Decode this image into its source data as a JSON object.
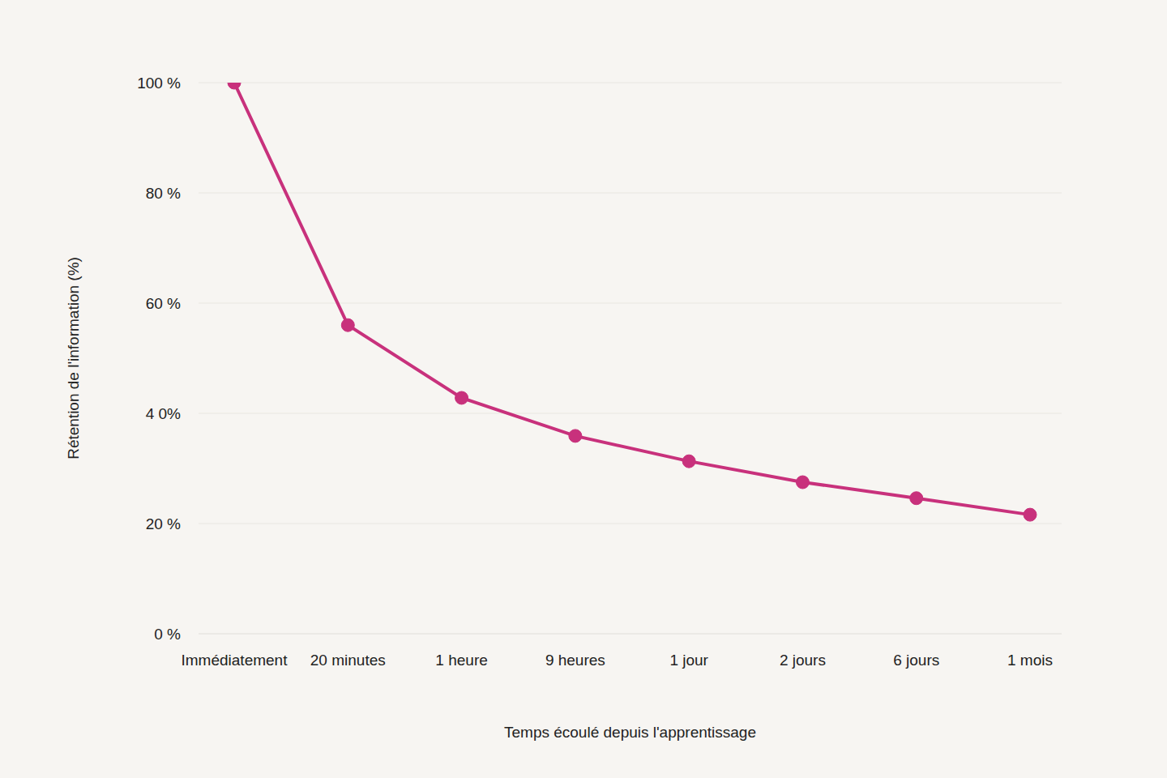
{
  "chart_data": {
    "type": "line",
    "x_label": "Temps écoulé depuis l'apprentissage",
    "y_label": "Rétention de l'information (%)",
    "categories": [
      "Immédiatement",
      "20 minutes",
      "1 heure",
      "9 heures",
      "1 jour",
      "2 jours",
      "6 jours",
      "1 mois"
    ],
    "values": [
      100,
      56,
      42.8,
      35.9,
      31.3,
      27.5,
      24.6,
      21.6
    ],
    "color": "#c8317c",
    "ylim": [
      0,
      100
    ],
    "yticks": [
      {
        "value": 0,
        "label": "0 %"
      },
      {
        "value": 20,
        "label": "20 %"
      },
      {
        "value": 40,
        "label": "4 0%"
      },
      {
        "value": 60,
        "label": "60 %"
      },
      {
        "value": 80,
        "label": "80 %"
      },
      {
        "value": 100,
        "label": "100 %"
      }
    ],
    "grid": true,
    "marker": "circle"
  }
}
